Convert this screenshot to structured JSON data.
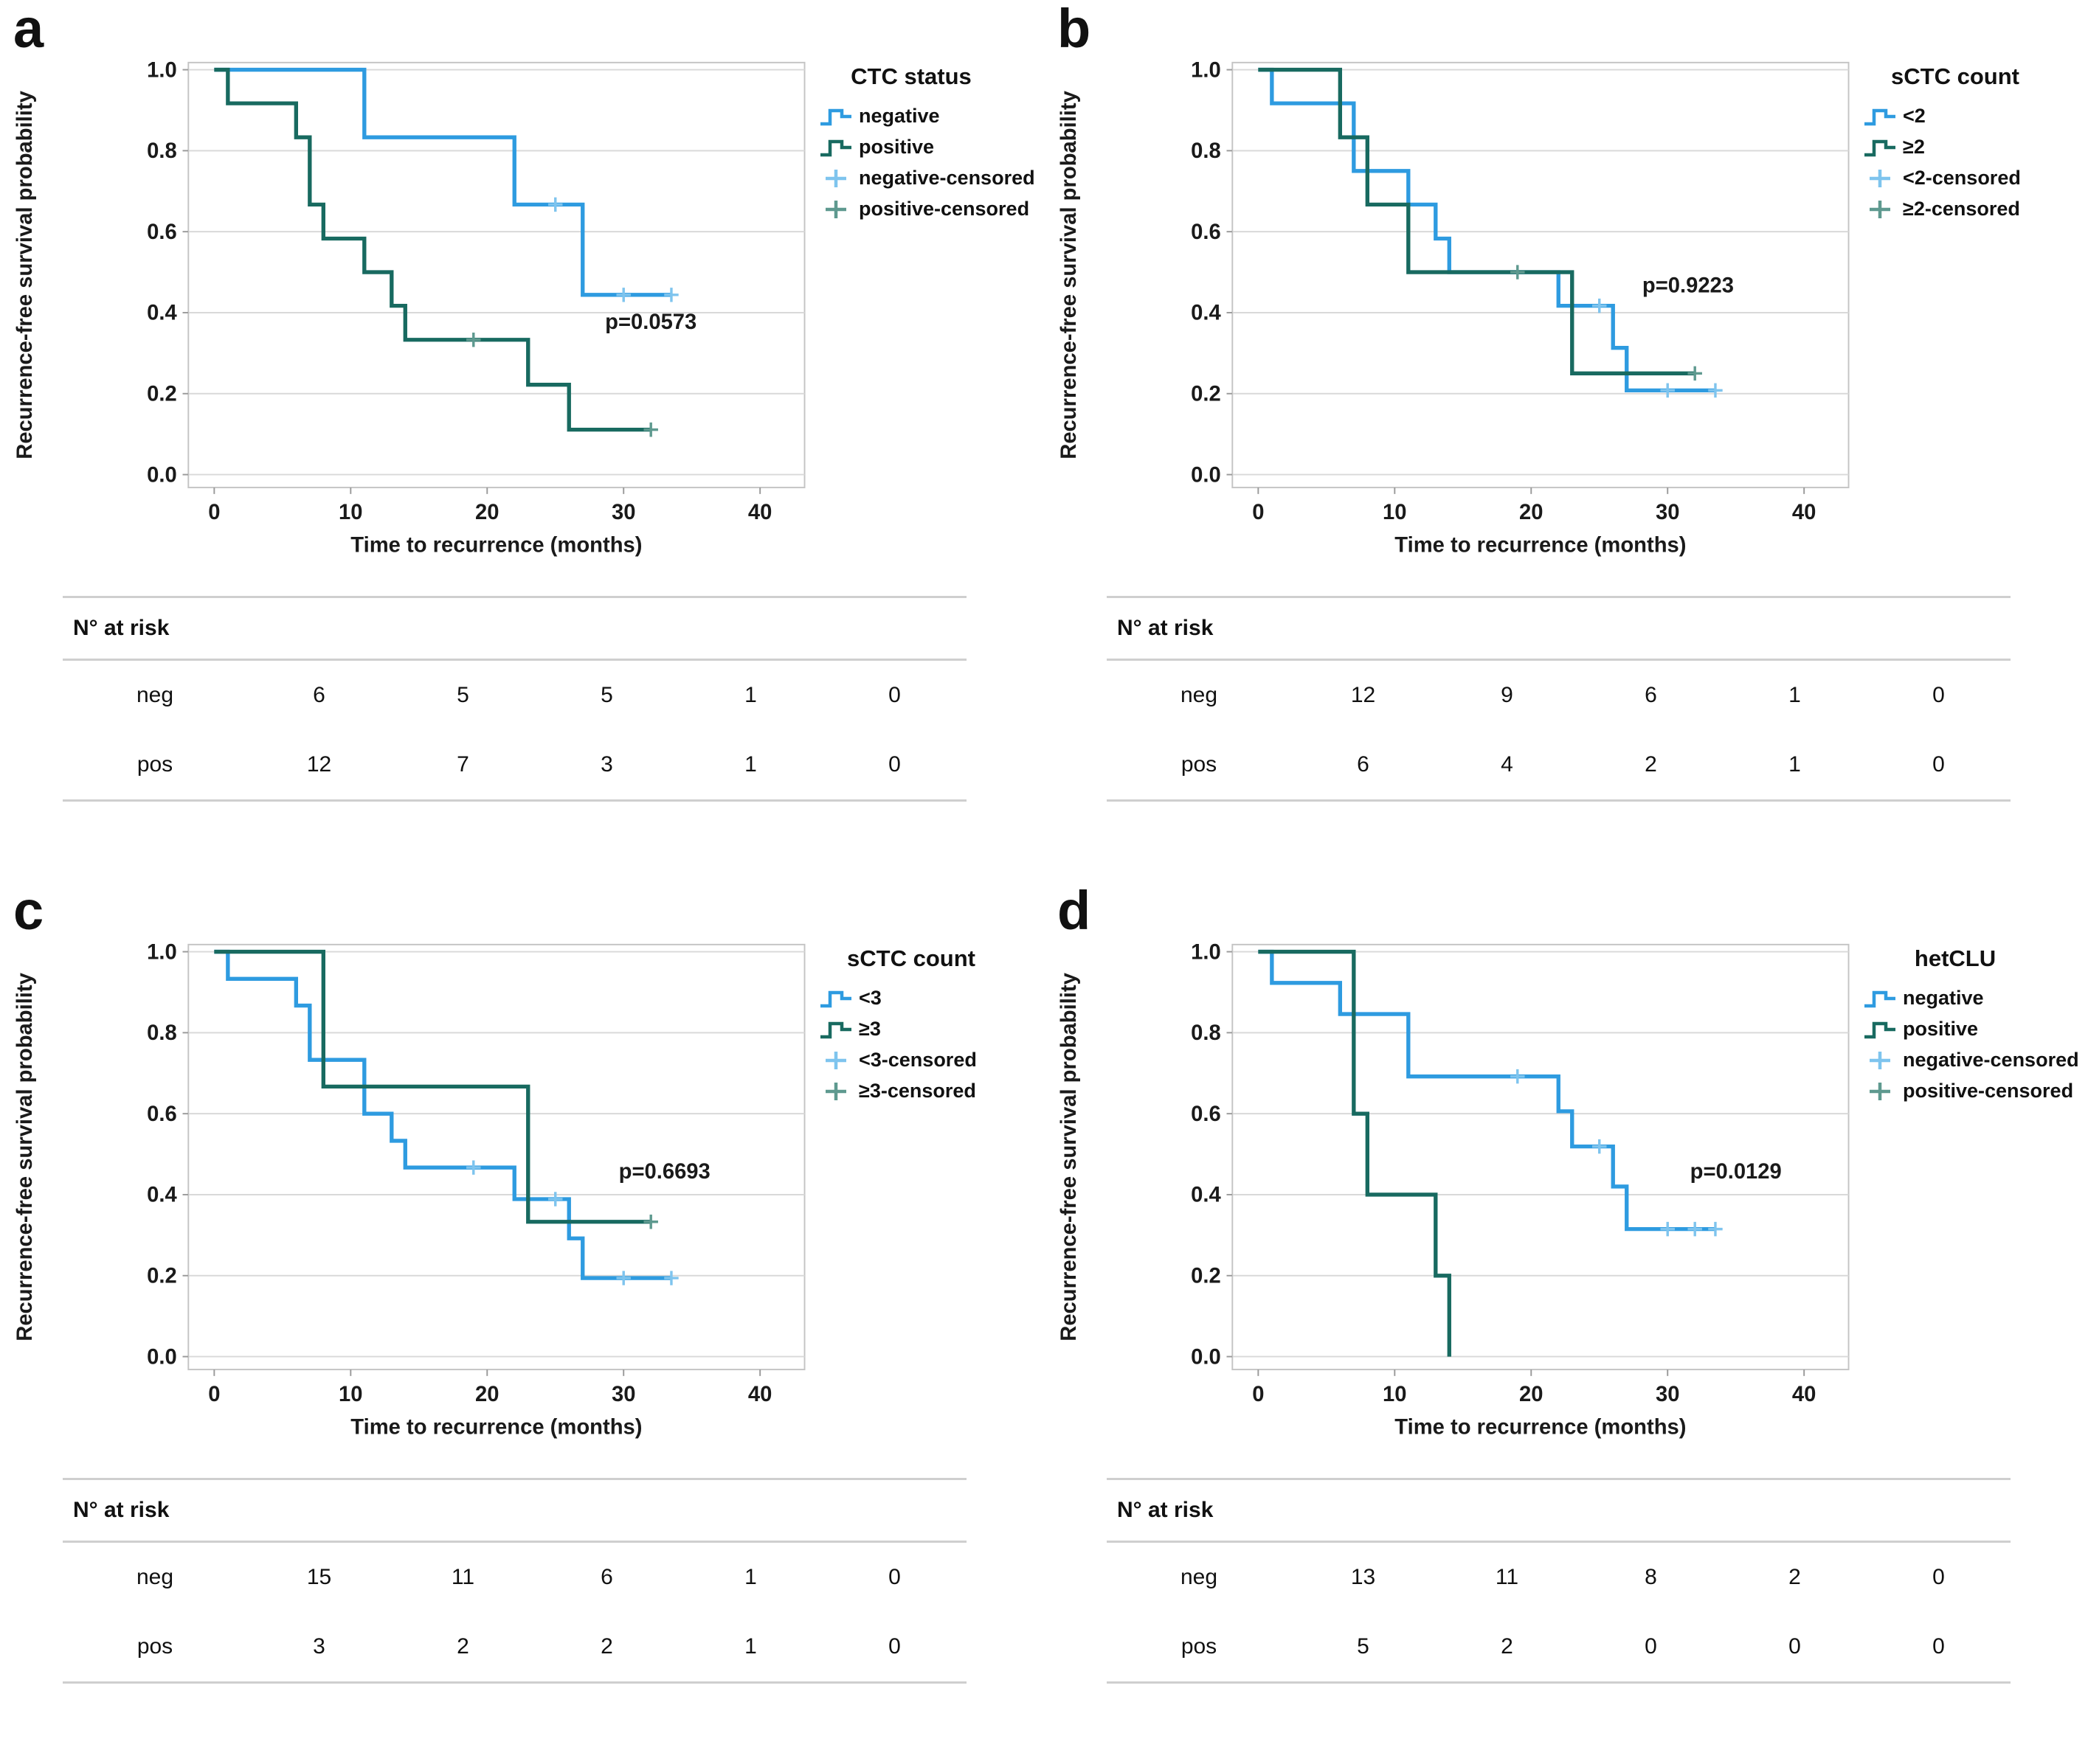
{
  "axes": {
    "x_label": "Time to recurrence (months)",
    "y_label": "Recurrence-free survival probability",
    "x_ticks": [
      0,
      10,
      20,
      30,
      40
    ],
    "y_ticks": [
      "1.0",
      "0.8",
      "0.6",
      "0.4",
      "0.2",
      "0.0"
    ],
    "xlim": [
      0,
      40
    ],
    "ylim": [
      0.0,
      1.0
    ],
    "grid": "horizontal"
  },
  "colors": {
    "blue_line": "#2E9BE0",
    "blue_censored": "#7EC4EE",
    "teal_line": "#186A60",
    "teal_censored": "#5E998F",
    "gridline": "#D9D9D9",
    "frame": "#C4C4C4",
    "tick": "#9A9A9A"
  },
  "chart_data": [
    {
      "type": "line",
      "subtype": "kaplan-meier-step",
      "letter": "a",
      "legend_title": "CTC status",
      "legend_items": [
        {
          "label": "negative",
          "icon": "step-line",
          "color": "#2E9BE0"
        },
        {
          "label": "positive",
          "icon": "step-line",
          "color": "#186A60"
        },
        {
          "label": "negative-censored",
          "icon": "censor-plus",
          "color": "#7EC4EE"
        },
        {
          "label": "positive-censored",
          "icon": "censor-plus",
          "color": "#5E998F"
        }
      ],
      "p_label": "p=0.0573",
      "p_pos": {
        "month": 32,
        "prob": 0.36
      },
      "series": [
        {
          "name": "negative",
          "color": "#2E9BE0",
          "censor_color": "#7EC4EE",
          "steps": [
            [
              0,
              1.0
            ],
            [
              11,
              0.833
            ],
            [
              22,
              0.667
            ],
            [
              27,
              0.444
            ]
          ],
          "end": 33.5,
          "censors": [
            [
              25,
              0.667
            ],
            [
              30,
              0.444
            ],
            [
              33.5,
              0.444
            ]
          ]
        },
        {
          "name": "positive",
          "color": "#186A60",
          "censor_color": "#5E998F",
          "steps": [
            [
              0,
              1.0
            ],
            [
              1,
              0.917
            ],
            [
              6,
              0.833
            ],
            [
              7,
              0.667
            ],
            [
              8,
              0.583
            ],
            [
              11,
              0.5
            ],
            [
              13,
              0.417
            ],
            [
              14,
              0.333
            ],
            [
              23,
              0.222
            ],
            [
              26,
              0.111
            ]
          ],
          "end": 32,
          "censors": [
            [
              19,
              0.333
            ],
            [
              32,
              0.111
            ]
          ]
        }
      ],
      "risk_table": {
        "header": "N° at risk",
        "rows": [
          {
            "label": "neg",
            "values": [
              "6",
              "5",
              "5",
              "1",
              "0"
            ]
          },
          {
            "label": "pos",
            "values": [
              "12",
              "7",
              "3",
              "1",
              "0"
            ]
          }
        ]
      }
    },
    {
      "type": "line",
      "subtype": "kaplan-meier-step",
      "letter": "b",
      "legend_title": "sCTC count",
      "legend_items": [
        {
          "label": "<2",
          "icon": "step-line",
          "color": "#2E9BE0"
        },
        {
          "label": "≥2",
          "icon": "step-line",
          "color": "#186A60"
        },
        {
          "label": "<2-censored",
          "icon": "censor-plus",
          "color": "#7EC4EE"
        },
        {
          "label": "≥2-censored",
          "icon": "censor-plus",
          "color": "#5E998F"
        }
      ],
      "p_label": "p=0.9223",
      "p_pos": {
        "month": 31.5,
        "prob": 0.45
      },
      "series": [
        {
          "name": "<2",
          "color": "#2E9BE0",
          "censor_color": "#7EC4EE",
          "steps": [
            [
              0,
              1.0
            ],
            [
              1,
              0.917
            ],
            [
              7,
              0.75
            ],
            [
              11,
              0.667
            ],
            [
              13,
              0.583
            ],
            [
              14,
              0.5
            ],
            [
              22,
              0.417
            ],
            [
              26,
              0.313
            ],
            [
              27,
              0.208
            ]
          ],
          "end": 33.5,
          "censors": [
            [
              25,
              0.417
            ],
            [
              30,
              0.208
            ],
            [
              33.5,
              0.208
            ]
          ]
        },
        {
          "name": "≥2",
          "color": "#186A60",
          "censor_color": "#5E998F",
          "steps": [
            [
              0,
              1.0
            ],
            [
              6,
              0.833
            ],
            [
              8,
              0.667
            ],
            [
              11,
              0.5
            ],
            [
              23,
              0.25
            ]
          ],
          "end": 32,
          "censors": [
            [
              19,
              0.5
            ],
            [
              32,
              0.25
            ]
          ]
        }
      ],
      "risk_table": {
        "header": "N° at risk",
        "rows": [
          {
            "label": "neg",
            "values": [
              "12",
              "9",
              "6",
              "1",
              "0"
            ]
          },
          {
            "label": "pos",
            "values": [
              "6",
              "4",
              "2",
              "1",
              "0"
            ]
          }
        ]
      }
    },
    {
      "type": "line",
      "subtype": "kaplan-meier-step",
      "letter": "c",
      "legend_title": "sCTC count",
      "legend_items": [
        {
          "label": "<3",
          "icon": "step-line",
          "color": "#2E9BE0"
        },
        {
          "label": "≥3",
          "icon": "step-line",
          "color": "#186A60"
        },
        {
          "label": "<3-censored",
          "icon": "censor-plus",
          "color": "#7EC4EE"
        },
        {
          "label": "≥3-censored",
          "icon": "censor-plus",
          "color": "#5E998F"
        }
      ],
      "p_label": "p=0.6693",
      "p_pos": {
        "month": 33,
        "prob": 0.44
      },
      "series": [
        {
          "name": "<3",
          "color": "#2E9BE0",
          "censor_color": "#7EC4EE",
          "steps": [
            [
              0,
              1.0
            ],
            [
              1,
              0.933
            ],
            [
              6,
              0.867
            ],
            [
              7,
              0.733
            ],
            [
              11,
              0.6
            ],
            [
              13,
              0.533
            ],
            [
              14,
              0.467
            ],
            [
              22,
              0.389
            ],
            [
              26,
              0.292
            ],
            [
              27,
              0.194
            ]
          ],
          "end": 33.5,
          "censors": [
            [
              19,
              0.467
            ],
            [
              25,
              0.389
            ],
            [
              30,
              0.194
            ],
            [
              33.5,
              0.194
            ]
          ]
        },
        {
          "name": "≥3",
          "color": "#186A60",
          "censor_color": "#5E998F",
          "steps": [
            [
              0,
              1.0
            ],
            [
              8,
              0.667
            ],
            [
              23,
              0.333
            ]
          ],
          "end": 32,
          "censors": [
            [
              32,
              0.333
            ]
          ]
        }
      ],
      "risk_table": {
        "header": "N° at risk",
        "rows": [
          {
            "label": "neg",
            "values": [
              "15",
              "11",
              "6",
              "1",
              "0"
            ]
          },
          {
            "label": "pos",
            "values": [
              "3",
              "2",
              "2",
              "1",
              "0"
            ]
          }
        ]
      }
    },
    {
      "type": "line",
      "subtype": "kaplan-meier-step",
      "letter": "d",
      "legend_title": "hetCLU",
      "legend_items": [
        {
          "label": "negative",
          "icon": "step-line",
          "color": "#2E9BE0"
        },
        {
          "label": "positive",
          "icon": "step-line",
          "color": "#186A60"
        },
        {
          "label": "negative-censored",
          "icon": "censor-plus",
          "color": "#7EC4EE"
        },
        {
          "label": "positive-censored",
          "icon": "censor-plus",
          "color": "#5E998F"
        }
      ],
      "p_label": "p=0.0129",
      "p_pos": {
        "month": 35,
        "prob": 0.44
      },
      "series": [
        {
          "name": "negative",
          "color": "#2E9BE0",
          "censor_color": "#7EC4EE",
          "steps": [
            [
              0,
              1.0
            ],
            [
              1,
              0.923
            ],
            [
              6,
              0.846
            ],
            [
              11,
              0.692
            ],
            [
              22,
              0.606
            ],
            [
              23,
              0.519
            ],
            [
              26,
              0.42
            ],
            [
              27,
              0.315
            ]
          ],
          "end": 33.5,
          "censors": [
            [
              19,
              0.692
            ],
            [
              25,
              0.519
            ],
            [
              30,
              0.315
            ],
            [
              32,
              0.315
            ],
            [
              33.5,
              0.315
            ]
          ]
        },
        {
          "name": "positive",
          "color": "#186A60",
          "censor_color": "#5E998F",
          "steps": [
            [
              0,
              1.0
            ],
            [
              7,
              0.6
            ],
            [
              8,
              0.4
            ],
            [
              13,
              0.2
            ],
            [
              14,
              0.0
            ]
          ],
          "end": 14,
          "censors": []
        }
      ],
      "risk_table": {
        "header": "N° at risk",
        "rows": [
          {
            "label": "neg",
            "values": [
              "13",
              "11",
              "8",
              "2",
              "0"
            ]
          },
          {
            "label": "pos",
            "values": [
              "5",
              "2",
              "0",
              "0",
              "0"
            ]
          }
        ]
      }
    }
  ]
}
